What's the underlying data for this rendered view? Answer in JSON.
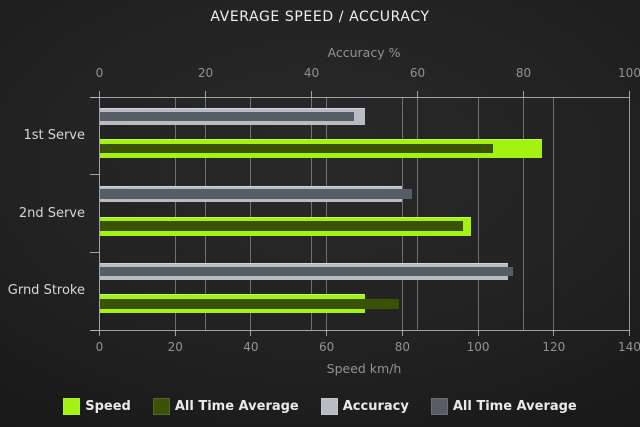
{
  "title": "AVERAGE SPEED / ACCURACY",
  "chart_data": {
    "type": "bar",
    "orientation": "horizontal",
    "categories": [
      "1st Serve",
      "2nd Serve",
      "Grnd Stroke"
    ],
    "series": [
      {
        "name": "Speed",
        "axis": "bottom",
        "color": "#a4f211",
        "values": [
          117,
          98,
          70
        ]
      },
      {
        "name": "All Time Average",
        "axis": "bottom",
        "color": "#3a5206",
        "values": [
          104,
          96,
          79
        ]
      },
      {
        "name": "Accuracy",
        "axis": "top",
        "color": "#b7bdc3",
        "values": [
          50,
          57,
          77
        ]
      },
      {
        "name": "All Time Average",
        "axis": "top",
        "color": "#575d64",
        "values": [
          48,
          59,
          78
        ]
      }
    ],
    "axes": {
      "top": {
        "label": "Accuracy %",
        "min": 0,
        "max": 100,
        "ticks": [
          0,
          20,
          40,
          60,
          80,
          100
        ]
      },
      "bottom": {
        "label": "Speed km/h",
        "min": 0,
        "max": 140,
        "ticks": [
          0,
          20,
          40,
          60,
          80,
          100,
          120,
          140
        ]
      }
    },
    "grid": true,
    "legend_position": "bottom"
  },
  "colors": {
    "background_center": "#292929",
    "background_edge": "#161616",
    "axis": "#b4b9be",
    "grid": "#c8cdd2",
    "tick_label": "#8f9396",
    "axis_title": "#8f9396",
    "category_label": "#d4d6d8",
    "title": "#f0f0f0",
    "legend_text": "#e9e9e9",
    "speed": "#a4f211",
    "speed_average": "#3a5206",
    "accuracy": "#b7bdc3",
    "accuracy_average": "#575d64"
  }
}
